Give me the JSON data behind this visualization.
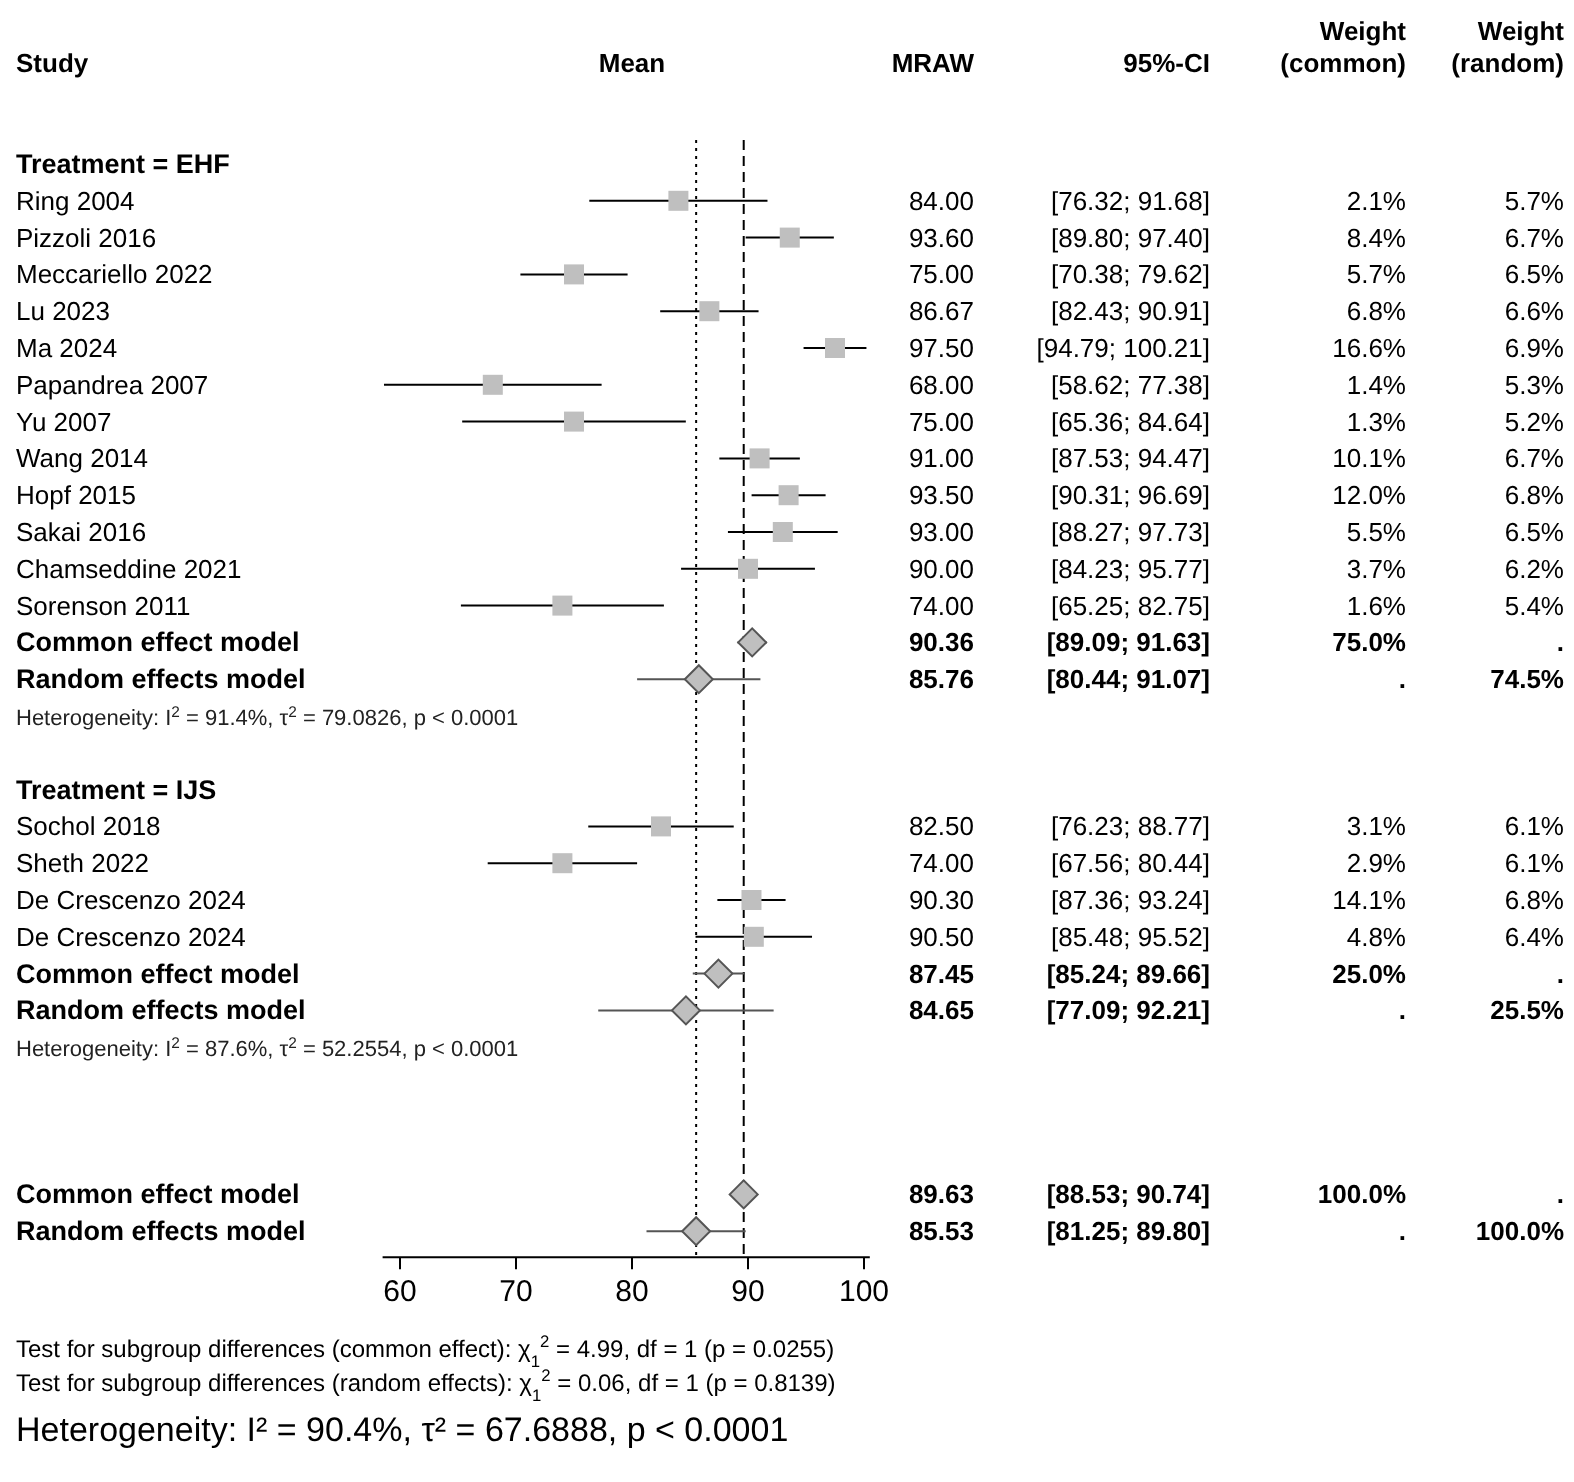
{
  "chart_data": [
    {
      "type": "scatter",
      "orientation": "horizontal",
      "ylabel": "Study",
      "xlabel": "Mean",
      "categories": [
        "Treatment = EHF",
        "Ring  2004",
        "Pizzoli  2016",
        "Meccariello 2022",
        "Lu 2023",
        "Ma  2024",
        "Papandrea 2007",
        "Yu 2007",
        "Wang 2014",
        "Hopf 2015",
        "Sakai 2016",
        "Chamseddine 2021",
        "Sorenson 2011",
        "Common effect model",
        "Random effects model",
        "Heterogeneity: I$^{2}$ = 91.4%, τ$^{2}$ = 79.0826, p < 0.0001",
        null,
        "Treatment = IJS",
        "Sochol 2018",
        "Sheth 2022",
        "De Crescenzo 2024",
        "De Crescenzo 2024",
        "Common effect model",
        "Random effects model",
        "Heterogeneity: I$^{2}$ = 87.6%, τ$^{2}$ = 52.2554, p < 0.0001",
        null,
        null,
        null,
        "Common effect model",
        "Random effects model"
      ],
      "series": [
        {
          "type": "scatter",
          "marker": "square",
          "color": "#bfbfbf",
          "values": [
            null,
            84.0,
            93.6,
            75.0,
            86.67,
            97.5,
            68.0,
            75.0,
            91.0,
            93.5,
            93.0,
            90.0,
            74.0,
            null,
            null,
            null,
            null,
            null,
            82.5,
            74.0,
            90.3,
            90.5,
            null,
            null,
            null,
            null,
            null,
            null,
            null,
            null
          ],
          "errors": [
            null,
            [
              76.32,
              91.68
            ],
            [
              89.8,
              97.4
            ],
            [
              70.38,
              79.62
            ],
            [
              82.43,
              90.91
            ],
            [
              94.79,
              100.21
            ],
            [
              58.62,
              77.38
            ],
            [
              65.36,
              84.64
            ],
            [
              87.53,
              94.47
            ],
            [
              90.31,
              96.69
            ],
            [
              88.27,
              97.73
            ],
            [
              84.23,
              95.77
            ],
            [
              65.25,
              82.75
            ],
            null,
            null,
            null,
            null,
            null,
            [
              76.23,
              88.77
            ],
            [
              67.56,
              80.44
            ],
            [
              87.36,
              93.24
            ],
            [
              85.48,
              95.52
            ],
            null,
            null,
            null,
            null,
            null,
            null,
            null,
            null
          ]
        },
        {
          "type": "scatter",
          "marker": "diamond",
          "color": "#bfbfbf",
          "values": [
            null,
            null,
            null,
            null,
            null,
            null,
            null,
            null,
            null,
            null,
            null,
            null,
            null,
            90.36,
            85.76,
            null,
            null,
            null,
            null,
            null,
            null,
            null,
            87.45,
            84.65,
            null,
            null,
            null,
            null,
            89.63,
            85.53
          ],
          "errors": [
            null,
            null,
            null,
            null,
            null,
            null,
            null,
            null,
            null,
            null,
            null,
            null,
            null,
            [
              89.09,
              91.63
            ],
            [
              80.44,
              91.07
            ],
            null,
            null,
            null,
            null,
            null,
            null,
            null,
            [
              85.24,
              89.66
            ],
            [
              77.09,
              92.21
            ],
            null,
            null,
            null,
            null,
            [
              88.53,
              90.74
            ],
            [
              81.25,
              89.8
            ]
          ]
        }
      ],
      "xlim": [
        58.5,
        100.5
      ],
      "xticks": [
        60,
        70,
        80,
        90,
        100
      ],
      "ref_lines": [
        {
          "axis": "x",
          "value": 85.53,
          "line_style": "dotted"
        },
        {
          "axis": "x",
          "value": 89.63,
          "line_style": "dashed"
        }
      ],
      "annotations": [
        "Test for subgroup differences (common effect): χ$_{1}$$^{2}$ = 4.99, df = 1 (p = 0.0255)",
        "Test for subgroup differences (random effects): χ$_{1}$$^{2}$ = 0.06, df = 1 (p = 0.8139)",
        "Heterogeneity: I² = 90.4%, τ² = 67.6888, p < 0.0001"
      ]
    },
    {
      "type": "other",
      "categories": [
        "MRAW",
        "95%-CI",
        "Weight (common)",
        "Weight (random)"
      ],
      "cell_labels": [
        [
          null,
          null,
          null,
          null
        ],
        [
          "84.00",
          "[76.32; 91.68]",
          "2.1%",
          "5.7%"
        ],
        [
          "93.60",
          "[89.80; 97.40]",
          "8.4%",
          "6.7%"
        ],
        [
          "75.00",
          "[70.38; 79.62]",
          "5.7%",
          "6.5%"
        ],
        [
          "86.67",
          "[82.43; 90.91]",
          "6.8%",
          "6.6%"
        ],
        [
          "97.50",
          "[94.79; 100.21]",
          "16.6%",
          "6.9%"
        ],
        [
          "68.00",
          "[58.62; 77.38]",
          "1.4%",
          "5.3%"
        ],
        [
          "75.00",
          "[65.36; 84.64]",
          "1.3%",
          "5.2%"
        ],
        [
          "91.00",
          "[87.53; 94.47]",
          "10.1%",
          "6.7%"
        ],
        [
          "93.50",
          "[90.31; 96.69]",
          "12.0%",
          "6.8%"
        ],
        [
          "93.00",
          "[88.27; 97.73]",
          "5.5%",
          "6.5%"
        ],
        [
          "90.00",
          "[84.23; 95.77]",
          "3.7%",
          "6.2%"
        ],
        [
          "74.00",
          "[65.25; 82.75]",
          "1.6%",
          "5.4%"
        ],
        [
          "90.36",
          "[89.09; 91.63]",
          "75.0%",
          "."
        ],
        [
          "85.76",
          "[80.44; 91.07]",
          ".",
          "74.5%"
        ],
        [
          null,
          null,
          null,
          null
        ],
        [
          null,
          null,
          null,
          null
        ],
        [
          null,
          null,
          null,
          null
        ],
        [
          "82.50",
          "[76.23; 88.77]",
          "3.1%",
          "6.1%"
        ],
        [
          "74.00",
          "[67.56; 80.44]",
          "2.9%",
          "6.1%"
        ],
        [
          "90.30",
          "[87.36; 93.24]",
          "14.1%",
          "6.8%"
        ],
        [
          "90.50",
          "[85.48; 95.52]",
          "4.8%",
          "6.4%"
        ],
        [
          "87.45",
          "[85.24; 89.66]",
          "25.0%",
          "."
        ],
        [
          "84.65",
          "[77.09; 92.21]",
          ".",
          "25.5%"
        ],
        [
          null,
          null,
          null,
          null
        ],
        [
          null,
          null,
          null,
          null
        ],
        [
          null,
          null,
          null,
          null
        ],
        [
          null,
          null,
          null,
          null
        ],
        [
          "89.63",
          "[88.53; 90.74]",
          "100.0%",
          "."
        ],
        [
          "85.53",
          "[81.25; 89.80]",
          ".",
          "100.0%"
        ]
      ]
    }
  ]
}
